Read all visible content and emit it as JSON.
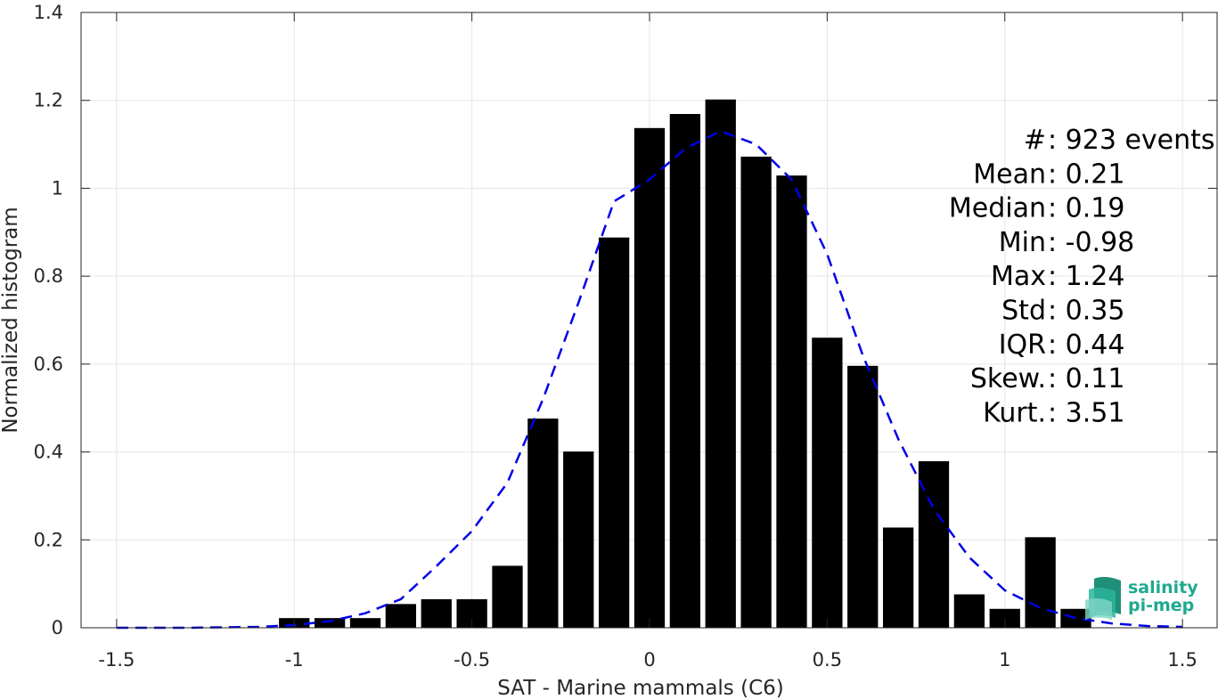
{
  "chart_data": {
    "type": "bar",
    "xlabel": "SAT - Marine mammals (C6)",
    "ylabel": "Normalized histogram",
    "xlim": [
      -1.6,
      1.6
    ],
    "ylim": [
      0,
      1.4
    ],
    "xticks": [
      -1.5,
      -1,
      -0.5,
      0,
      0.5,
      1,
      1.5
    ],
    "xtick_labels": [
      "-1.5",
      "-1",
      "-0.5",
      "0",
      "0.5",
      "1",
      "1.5"
    ],
    "yticks": [
      0,
      0.2,
      0.4,
      0.6,
      0.8,
      1,
      1.2,
      1.4
    ],
    "ytick_labels": [
      "0",
      "0.2",
      "0.4",
      "0.6",
      "0.8",
      "1",
      "1.2",
      "1.4"
    ],
    "grid": true,
    "bar_color": "#000000",
    "bin_width": 0.1,
    "bars": [
      {
        "x": -1.0,
        "y": 0.022
      },
      {
        "x": -0.9,
        "y": 0.022
      },
      {
        "x": -0.8,
        "y": 0.022
      },
      {
        "x": -0.7,
        "y": 0.054
      },
      {
        "x": -0.6,
        "y": 0.065
      },
      {
        "x": -0.5,
        "y": 0.065
      },
      {
        "x": -0.4,
        "y": 0.141
      },
      {
        "x": -0.3,
        "y": 0.476
      },
      {
        "x": -0.2,
        "y": 0.401
      },
      {
        "x": -0.1,
        "y": 0.888
      },
      {
        "x": 0.0,
        "y": 1.137
      },
      {
        "x": 0.1,
        "y": 1.169
      },
      {
        "x": 0.2,
        "y": 1.202
      },
      {
        "x": 0.3,
        "y": 1.072
      },
      {
        "x": 0.4,
        "y": 1.029
      },
      {
        "x": 0.5,
        "y": 0.66
      },
      {
        "x": 0.6,
        "y": 0.596
      },
      {
        "x": 0.7,
        "y": 0.228
      },
      {
        "x": 0.8,
        "y": 0.379
      },
      {
        "x": 0.9,
        "y": 0.076
      },
      {
        "x": 1.0,
        "y": 0.043
      },
      {
        "x": 1.1,
        "y": 0.206
      },
      {
        "x": 1.2,
        "y": 0.043
      }
    ],
    "fit_curve": {
      "style": "dashed",
      "color": "#0000e6",
      "x": [
        -1.5,
        -1.4,
        -1.3,
        -1.2,
        -1.1,
        -1.0,
        -0.9,
        -0.8,
        -0.7,
        -0.6,
        -0.5,
        -0.4,
        -0.3,
        -0.2,
        -0.1,
        0.0,
        0.1,
        0.2,
        0.3,
        0.4,
        0.5,
        0.6,
        0.7,
        0.8,
        0.9,
        1.0,
        1.1,
        1.2,
        1.3,
        1.4,
        1.5
      ],
      "y": [
        0.0,
        0.0,
        0.0,
        0.001,
        0.002,
        0.006,
        0.015,
        0.033,
        0.065,
        0.14,
        0.22,
        0.33,
        0.52,
        0.74,
        0.97,
        1.02,
        1.09,
        1.13,
        1.1,
        1.02,
        0.85,
        0.62,
        0.43,
        0.27,
        0.16,
        0.085,
        0.045,
        0.022,
        0.01,
        0.004,
        0.002
      ]
    },
    "stats": [
      "#  : 923 events",
      "Mean : 0.21",
      "Median : 0.19",
      "Min : -0.98",
      "Max : 1.24",
      "Std : 0.35",
      "IQR : 0.44",
      "Skew. : 0.11",
      "Kurt. : 3.51"
    ]
  },
  "logo": {
    "line1": "salinity",
    "line2": "pi-mep",
    "color": "#1fa98f"
  }
}
